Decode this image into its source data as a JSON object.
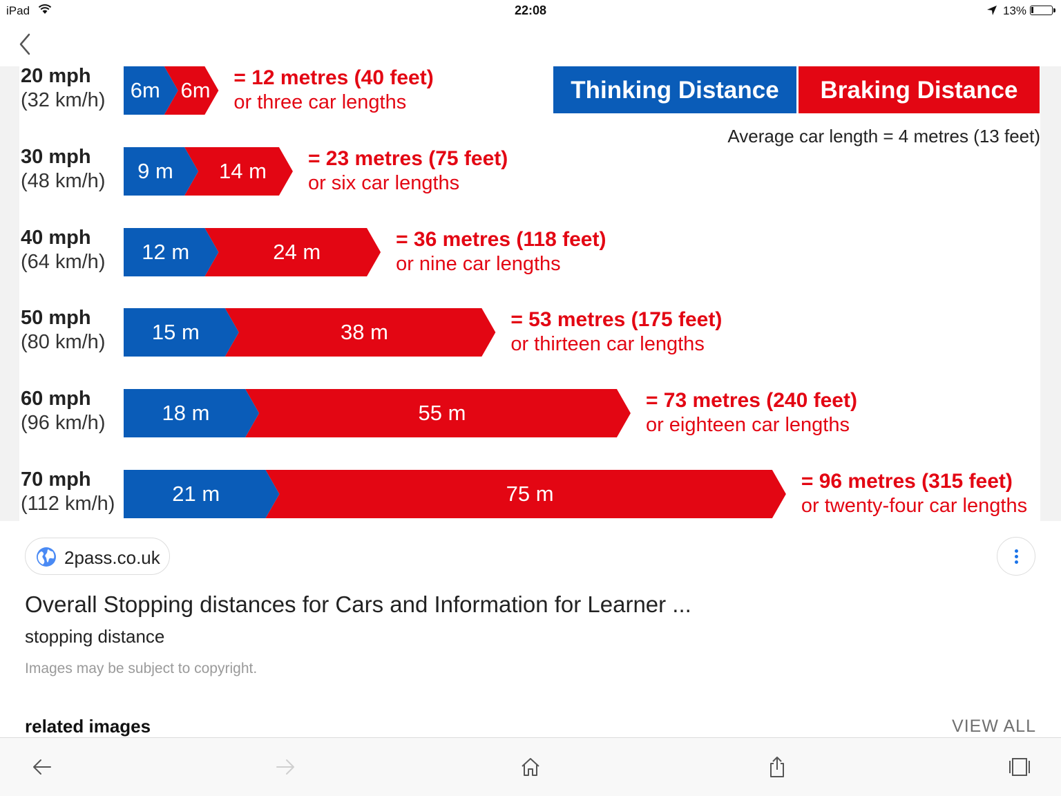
{
  "status_bar": {
    "device": "iPad",
    "time": "22:08",
    "battery": "13%",
    "icons": [
      "wifi-icon",
      "location-arrow-icon",
      "battery-icon"
    ]
  },
  "nav": {
    "back_icon": "chevron-left-icon"
  },
  "figure": {
    "legend": {
      "thinking": "Thinking Distance",
      "braking": "Braking Distance",
      "thinking_color": "#0a5cb8",
      "braking_color": "#e30613"
    },
    "note": "Average car length = 4 metres (13 feet)",
    "rows": [
      {
        "mph": "20 mph",
        "kmh": "(32 km/h)",
        "thinking_label": "6m",
        "braking_label": "6m",
        "thinking_m": 6,
        "braking_m": 6,
        "total": "= 12 metres (40 feet)",
        "lengths": "or three car lengths"
      },
      {
        "mph": "30 mph",
        "kmh": "(48 km/h)",
        "thinking_label": "9 m",
        "braking_label": "14 m",
        "thinking_m": 9,
        "braking_m": 14,
        "total": "= 23 metres (75 feet)",
        "lengths": "or six car lengths"
      },
      {
        "mph": "40 mph",
        "kmh": "(64 km/h)",
        "thinking_label": "12 m",
        "braking_label": "24 m",
        "thinking_m": 12,
        "braking_m": 24,
        "total": "= 36 metres (118 feet)",
        "lengths": "or nine car lengths"
      },
      {
        "mph": "50 mph",
        "kmh": "(80 km/h)",
        "thinking_label": "15 m",
        "braking_label": "38 m",
        "thinking_m": 15,
        "braking_m": 38,
        "total": "= 53 metres (175 feet)",
        "lengths": "or thirteen car lengths"
      },
      {
        "mph": "60 mph",
        "kmh": "(96 km/h)",
        "thinking_label": "18 m",
        "braking_label": "55 m",
        "thinking_m": 18,
        "braking_m": 55,
        "total": "= 73 metres (240 feet)",
        "lengths": "or eighteen car lengths"
      },
      {
        "mph": "70 mph",
        "kmh": "(112 km/h)",
        "thinking_label": "21 m",
        "braking_label": "75 m",
        "thinking_m": 21,
        "braking_m": 75,
        "total": "= 96 metres (315 feet)",
        "lengths": "or twenty-four car lengths"
      }
    ]
  },
  "result": {
    "source_icon": "globe-icon",
    "source": "2pass.co.uk",
    "more_icon": "more-vertical-icon",
    "title": "Overall Stopping distances for Cars and Information for Learner ...",
    "subtitle": "stopping distance",
    "copyright": "Images may be subject to copyright."
  },
  "related": {
    "heading": "related images",
    "view_all": "VIEW ALL"
  },
  "toolbar": {
    "icons": [
      "back-arrow-icon",
      "forward-arrow-icon",
      "home-icon",
      "share-icon",
      "tabs-icon"
    ]
  }
}
